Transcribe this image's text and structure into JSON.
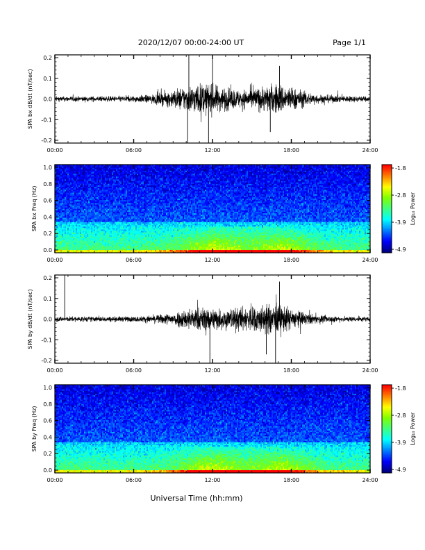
{
  "header": {
    "date_range": "2020/12/07  00:00-24:00 UT",
    "page": "Page 1/1"
  },
  "xaxis": {
    "ticks": [
      "00:00",
      "06:00",
      "12:00",
      "18:00",
      "24:00"
    ],
    "label": "Universal Time (hh:mm)",
    "range_hours": [
      0,
      24
    ]
  },
  "colorbar": {
    "label": "Log₁₀ Power",
    "ticks": [
      "-1.8",
      "-2.8",
      "-3.9",
      "-4.9"
    ],
    "range": [
      -4.9,
      -1.8
    ],
    "colormap": [
      "#00007f",
      "#0000ff",
      "#0080ff",
      "#00ffff",
      "#40ff80",
      "#80ff00",
      "#ffff00",
      "#ff8000",
      "#ff0000"
    ]
  },
  "chart_data": [
    {
      "type": "line",
      "ylabel": "SPA bx dB/dt (nT/sec)",
      "yticks": [
        "0.2",
        "0.1",
        "0.0",
        "-0.1",
        "-0.2"
      ],
      "ylim": [
        -0.2,
        0.2
      ],
      "envelope": {
        "hours": [
          0,
          2,
          4,
          6,
          7,
          8,
          9,
          10,
          11,
          12,
          13,
          14,
          15,
          16,
          17,
          18,
          19,
          20,
          22,
          24
        ],
        "amplitude": [
          0.02,
          0.02,
          0.02,
          0.025,
          0.03,
          0.045,
          0.07,
          0.1,
          0.12,
          0.11,
          0.09,
          0.07,
          0.08,
          0.1,
          0.12,
          0.09,
          0.06,
          0.035,
          0.025,
          0.02
        ]
      },
      "spikes": [
        {
          "hour": 10.1,
          "value": -0.2
        },
        {
          "hour": 10.2,
          "value": 0.2
        },
        {
          "hour": 11.7,
          "value": -0.2
        },
        {
          "hour": 12.0,
          "value": 0.2
        },
        {
          "hour": 17.1,
          "value": 0.15
        },
        {
          "hour": 16.4,
          "value": -0.15
        }
      ]
    },
    {
      "type": "heatmap",
      "ylabel": "SPA bx Freq (Hz)",
      "yticks": [
        "1.0",
        "0.8",
        "0.6",
        "0.4",
        "0.2",
        "0.0"
      ],
      "ylim": [
        0.0,
        1.0
      ],
      "background_level": -3.9,
      "low_band_max_hz": 0.35,
      "hot_spots_hours": [
        12,
        17.5
      ]
    },
    {
      "type": "line",
      "ylabel": "SPA by dB/dt (nT/sec)",
      "yticks": [
        "0.2",
        "0.1",
        "0.0",
        "-0.1",
        "-0.2"
      ],
      "ylim": [
        -0.2,
        0.2
      ],
      "envelope": {
        "hours": [
          0,
          2,
          4,
          6,
          7,
          8,
          9,
          10,
          11,
          12,
          13,
          14,
          15,
          16,
          17,
          18,
          19,
          20,
          22,
          24
        ],
        "amplitude": [
          0.02,
          0.02,
          0.02,
          0.02,
          0.025,
          0.035,
          0.05,
          0.08,
          0.09,
          0.09,
          0.08,
          0.09,
          0.1,
          0.11,
          0.12,
          0.08,
          0.05,
          0.03,
          0.02,
          0.02
        ]
      },
      "spikes": [
        {
          "hour": 0.75,
          "value": 0.2
        },
        {
          "hour": 11.8,
          "value": -0.2
        },
        {
          "hour": 17.1,
          "value": 0.17
        },
        {
          "hour": 16.8,
          "value": -0.2
        },
        {
          "hour": 16.1,
          "value": -0.16
        }
      ]
    },
    {
      "type": "heatmap",
      "ylabel": "SPA by Freq (Hz)",
      "yticks": [
        "1.0",
        "0.8",
        "0.6",
        "0.4",
        "0.2",
        "0.0"
      ],
      "ylim": [
        0.0,
        1.0
      ],
      "background_level": -3.9,
      "low_band_max_hz": 0.35,
      "hot_spots_hours": [
        11.8,
        17.5
      ]
    }
  ]
}
